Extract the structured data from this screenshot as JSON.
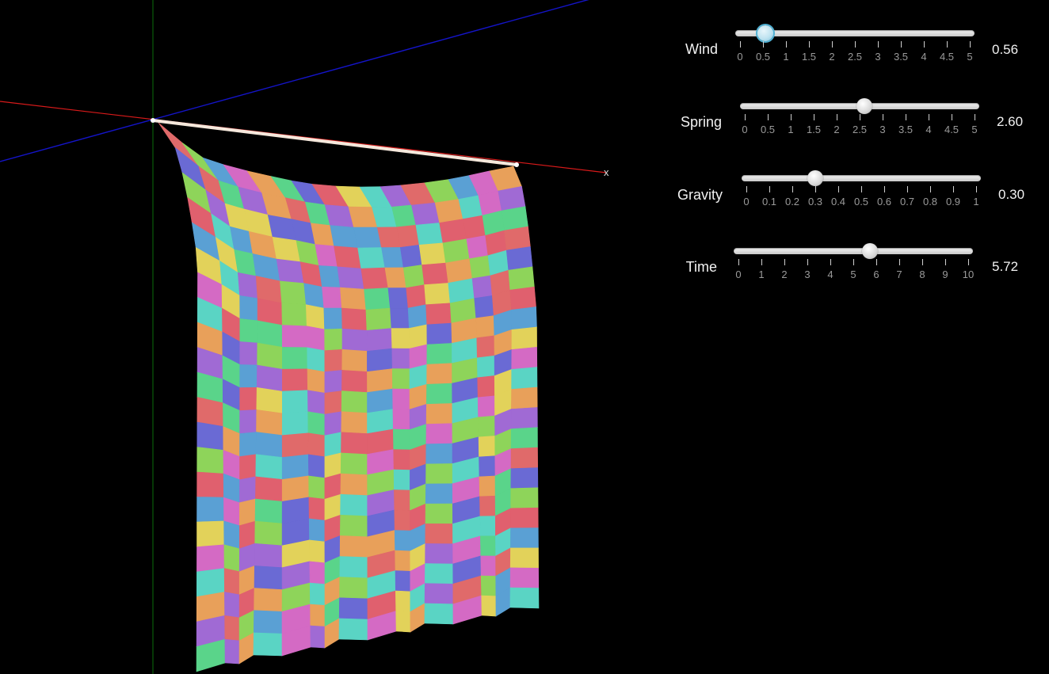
{
  "scene": {
    "axis_x_label": "x",
    "colors": {
      "x_axis": "#d81a1a",
      "y_axis": "#0a6e0a",
      "z_axis": "#1414c8",
      "rod": "#f5e8dc"
    },
    "cloth_palette": [
      "#e06a6a",
      "#e8a05a",
      "#e2d25a",
      "#8ed45a",
      "#5ad48a",
      "#5ad4c4",
      "#5aa0d4",
      "#6a6ad4",
      "#a06ad4",
      "#d46ac4",
      "#e0606e"
    ]
  },
  "controls": [
    {
      "name": "wind",
      "label": "Wind",
      "value": 0.56,
      "value_text": "0.56",
      "min": 0,
      "max": 5,
      "tick_labels": [
        "0",
        "0.5",
        "1",
        "1.5",
        "2",
        "2.5",
        "3",
        "3.5",
        "4",
        "4.5",
        "5"
      ],
      "focused": true
    },
    {
      "name": "spring",
      "label": "Spring",
      "value": 2.6,
      "value_text": "2.60",
      "min": 0,
      "max": 5,
      "tick_labels": [
        "0",
        "0.5",
        "1",
        "1.5",
        "2",
        "2.5",
        "3",
        "3.5",
        "4",
        "4.5",
        "5"
      ],
      "focused": false
    },
    {
      "name": "gravity",
      "label": "Gravity",
      "value": 0.3,
      "value_text": "0.30",
      "min": 0,
      "max": 1,
      "tick_labels": [
        "0",
        "0.1",
        "0.2",
        "0.3",
        "0.4",
        "0.5",
        "0.6",
        "0.7",
        "0.8",
        "0.9",
        "1"
      ],
      "focused": false
    },
    {
      "name": "time",
      "label": "Time",
      "value": 5.72,
      "value_text": "5.72",
      "min": 0,
      "max": 10,
      "tick_labels": [
        "0",
        "1",
        "2",
        "3",
        "4",
        "5",
        "6",
        "7",
        "8",
        "9",
        "10"
      ],
      "focused": false
    }
  ]
}
